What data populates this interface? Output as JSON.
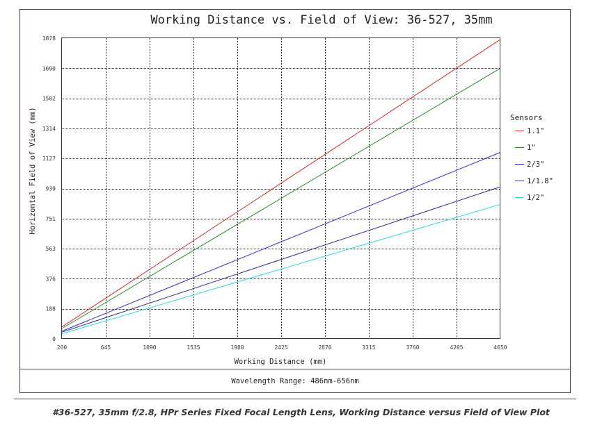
{
  "chart_data": {
    "type": "line",
    "title": "Working Distance vs. Field of View: 36-527, 35mm",
    "xlabel": "Working Distance (mm)",
    "ylabel": "Horizontal Field of View (mm)",
    "x_ticks": [
      200,
      645,
      1090,
      1535,
      1980,
      2425,
      2870,
      3315,
      3760,
      4205,
      4650
    ],
    "y_ticks": [
      0,
      188,
      376,
      563,
      751,
      939,
      1127,
      1314,
      1502,
      1690,
      1878
    ],
    "xlim": [
      200,
      4650
    ],
    "ylim": [
      0,
      1878
    ],
    "grid": true,
    "legend_title": "Sensors",
    "legend_position": "right",
    "series": [
      {
        "name": "1.1\"",
        "color": "#d62728",
        "x": [
          200,
          4650
        ],
        "y": [
          75,
          1870
        ]
      },
      {
        "name": "1\"",
        "color": "#2a8a2a",
        "x": [
          200,
          4650
        ],
        "y": [
          65,
          1690
        ]
      },
      {
        "name": "2/3\"",
        "color": "#2b2bc0",
        "x": [
          200,
          4650
        ],
        "y": [
          48,
          1165
        ]
      },
      {
        "name": "1/1.8\"",
        "color": "#2a2a80",
        "x": [
          200,
          4650
        ],
        "y": [
          42,
          950
        ]
      },
      {
        "name": "1/2\"",
        "color": "#2ad8e0",
        "x": [
          200,
          4650
        ],
        "y": [
          32,
          840
        ]
      }
    ],
    "footer": "Wavelength Range: 486nm-656nm"
  },
  "caption": "#36-527, 35mm f/2.8, HPr Series Fixed Focal Length Lens, Working Distance versus Field of View Plot",
  "colors": {
    "frame": "#3a3aa8",
    "grid": "#222222",
    "axis": "#333333"
  }
}
